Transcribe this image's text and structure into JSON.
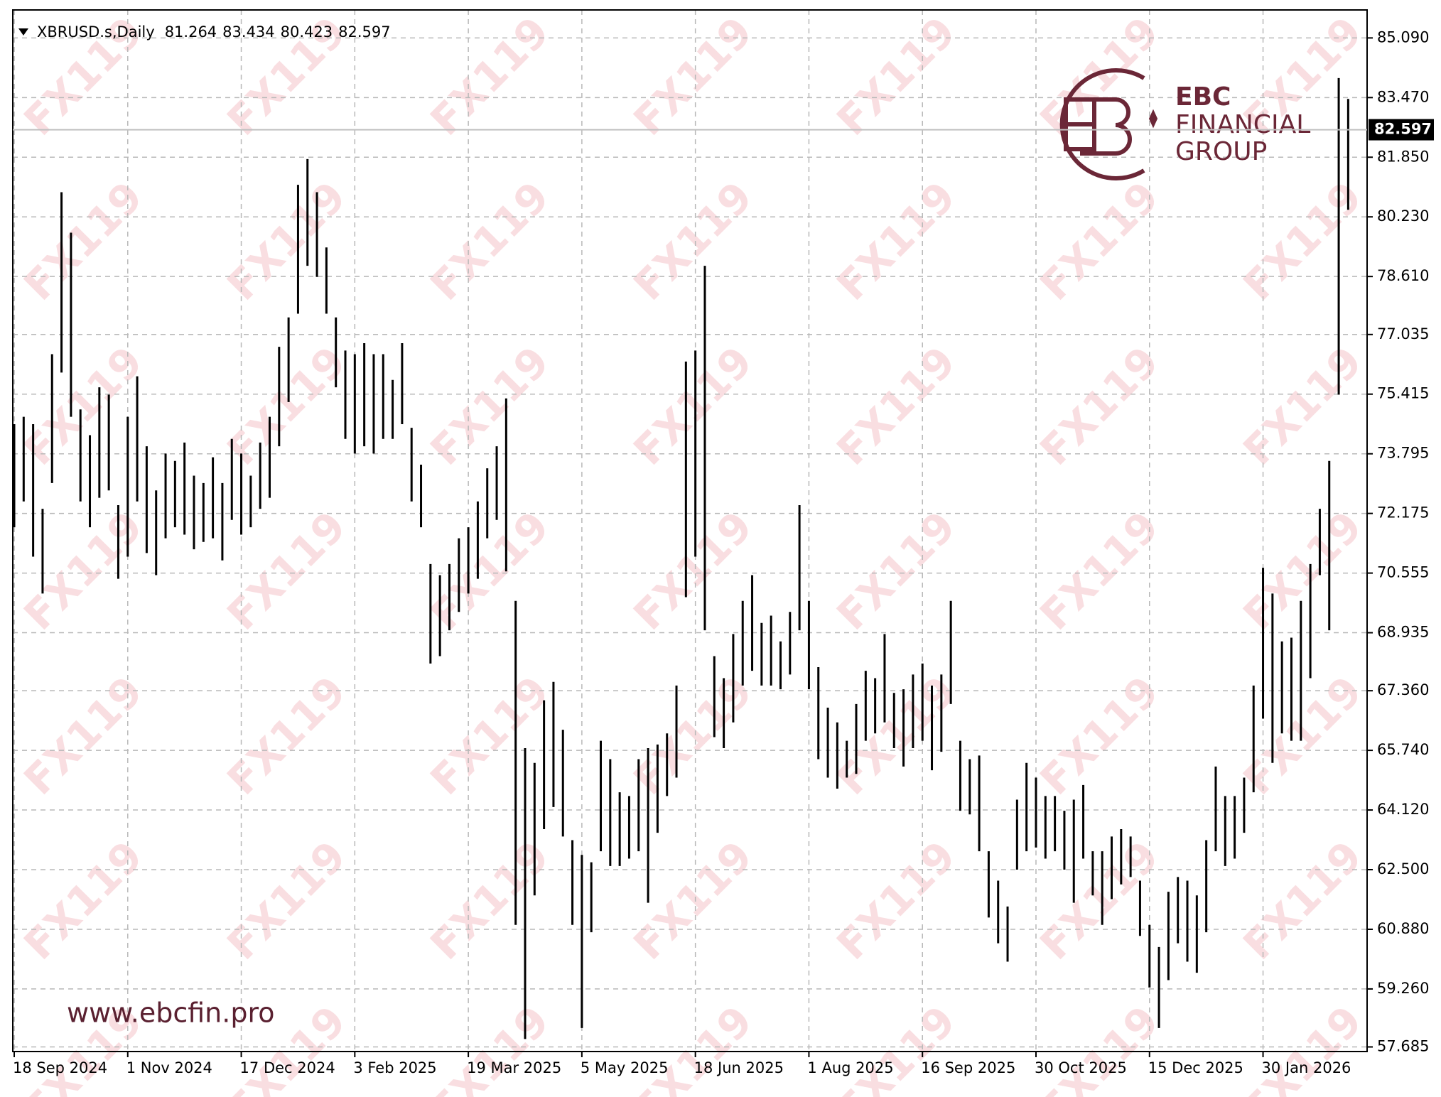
{
  "chart_data": {
    "type": "ohlc",
    "symbol_label": "XBRUSD.s,Daily",
    "quote": {
      "open": 81.264,
      "high": 83.434,
      "low": 80.423,
      "close": 82.597
    },
    "high": [
      74.6,
      74.8,
      74.6,
      72.3,
      76.5,
      80.9,
      79.8,
      75.0,
      74.3,
      75.6,
      75.4,
      72.4,
      74.8,
      75.9,
      74.0,
      72.8,
      73.8,
      73.6,
      74.1,
      73.2,
      73.0,
      73.7,
      73.0,
      74.2,
      73.8,
      73.2,
      74.1,
      74.8,
      76.7,
      77.5,
      81.1,
      81.8,
      80.9,
      79.4,
      77.5,
      76.6,
      76.5,
      76.8,
      76.5,
      76.5,
      75.8,
      76.8,
      74.5,
      73.5,
      70.8,
      70.5,
      70.8,
      71.5,
      71.8,
      72.5,
      73.4,
      74.0,
      75.3,
      69.8,
      65.8,
      65.4,
      67.1,
      67.6,
      66.3,
      63.3,
      62.9,
      62.7,
      66.0,
      65.5,
      64.6,
      64.5,
      65.5,
      65.8,
      65.9,
      66.2,
      67.5,
      76.3,
      76.6,
      78.9,
      68.3,
      67.7,
      68.9,
      69.8,
      70.5,
      69.2,
      69.4,
      68.7,
      69.5,
      72.4,
      69.8,
      68.0,
      66.9,
      66.5,
      66.0,
      67.0,
      67.9,
      67.7,
      68.9,
      67.3,
      67.4,
      67.8,
      68.1,
      67.5,
      67.8,
      69.8,
      66.0,
      65.5,
      65.6,
      63.0,
      62.2,
      61.5,
      64.4,
      65.4,
      65.0,
      64.5,
      64.5,
      64.1,
      64.4,
      64.8,
      63.0,
      63.0,
      63.4,
      63.6,
      63.4,
      62.2,
      61.0,
      60.4,
      61.9,
      62.3,
      62.2,
      61.8,
      63.3,
      65.3,
      64.5,
      64.5,
      65.0,
      67.5,
      70.7,
      70.0,
      68.7,
      68.8,
      69.8,
      70.8,
      72.3,
      73.6,
      84.0,
      83.434
    ],
    "low": [
      71.8,
      72.5,
      71.0,
      70.0,
      73.0,
      76.0,
      74.8,
      72.5,
      71.8,
      72.6,
      72.8,
      70.4,
      71.0,
      72.5,
      71.1,
      70.5,
      71.5,
      71.8,
      71.6,
      71.2,
      71.4,
      71.5,
      70.9,
      72.0,
      71.6,
      71.8,
      72.3,
      72.6,
      74.0,
      75.2,
      77.6,
      78.9,
      78.6,
      77.6,
      75.6,
      74.2,
      73.8,
      74.0,
      73.8,
      74.2,
      74.2,
      74.6,
      72.5,
      71.8,
      68.1,
      68.3,
      69.0,
      69.5,
      70.0,
      70.4,
      71.5,
      72.0,
      70.6,
      61.0,
      57.9,
      61.8,
      63.6,
      64.2,
      63.4,
      61.0,
      58.2,
      60.8,
      63.0,
      62.6,
      62.6,
      62.8,
      63.0,
      61.6,
      63.5,
      64.5,
      65.0,
      69.9,
      71.0,
      69.0,
      66.1,
      65.8,
      66.5,
      67.5,
      67.9,
      67.5,
      67.5,
      67.4,
      67.8,
      69.0,
      67.4,
      65.5,
      65.0,
      64.7,
      65.0,
      65.1,
      66.0,
      66.2,
      66.5,
      65.8,
      65.3,
      65.8,
      66.0,
      65.2,
      65.7,
      67.0,
      64.1,
      64.0,
      63.0,
      61.2,
      60.5,
      60.0,
      62.5,
      63.0,
      63.1,
      62.8,
      63.0,
      62.5,
      61.6,
      62.8,
      61.8,
      61.0,
      61.7,
      62.1,
      62.3,
      60.7,
      59.3,
      58.2,
      59.5,
      60.5,
      60.0,
      59.7,
      60.8,
      63.0,
      62.6,
      62.8,
      63.5,
      64.6,
      66.6,
      65.4,
      66.2,
      66.0,
      66.0,
      67.7,
      70.5,
      69.0,
      75.4,
      80.423
    ],
    "color": "#000000",
    "xlim": [
      -0.15,
      143
    ],
    "xticks": [
      {
        "value": 0,
        "label": "18 Sep 2024"
      },
      {
        "value": 12,
        "label": "1 Nov 2024"
      },
      {
        "value": 24,
        "label": "17 Dec 2024"
      },
      {
        "value": 36,
        "label": "3 Feb 2025"
      },
      {
        "value": 48,
        "label": "19 Mar 2025"
      },
      {
        "value": 60,
        "label": "5 May 2025"
      },
      {
        "value": 72,
        "label": "18 Jun 2025"
      },
      {
        "value": 84,
        "label": "1 Aug 2025"
      },
      {
        "value": 96,
        "label": "16 Sep 2025"
      },
      {
        "value": 108,
        "label": "30 Oct 2025"
      },
      {
        "value": 120,
        "label": "15 Dec 2025"
      },
      {
        "value": 132,
        "label": "30 Jan 2026"
      }
    ],
    "ylim": [
      57.56,
      85.85
    ],
    "yticks": [
      {
        "value": 85.09,
        "label": "85.090"
      },
      {
        "value": 83.47,
        "label": "83.470"
      },
      {
        "value": 81.85,
        "label": "81.850"
      },
      {
        "value": 80.23,
        "label": "80.230"
      },
      {
        "value": 78.61,
        "label": "78.610"
      },
      77.035,
      75.415,
      73.795,
      72.175,
      70.555,
      68.935,
      {
        "value": 67.36,
        "label": "67.360"
      },
      {
        "value": 65.74,
        "label": "65.740"
      },
      {
        "value": 64.12,
        "label": "64.120"
      },
      {
        "value": 62.5,
        "label": "62.500"
      },
      {
        "value": 60.88,
        "label": "60.880"
      },
      {
        "value": 59.26,
        "label": "59.260"
      },
      57.685
    ],
    "grid": true
  },
  "watermark": "FX119",
  "logo": {
    "line1": "EBC",
    "line2": "FINANCIAL",
    "line3": "GROUP"
  },
  "website": "www.ebcfin.pro"
}
